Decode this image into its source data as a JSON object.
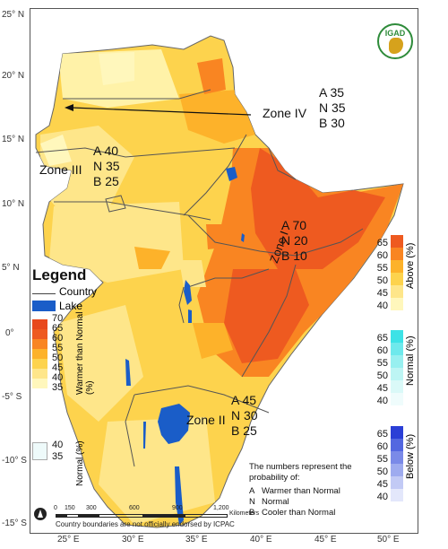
{
  "latitudes": [
    "25° N",
    "20° N",
    "15° N",
    "10° N",
    "5° N",
    "0°",
    "-5° S",
    "-10° S",
    "-15° S"
  ],
  "longitudes": [
    "25° E",
    "30° E",
    "35° E",
    "40° E",
    "45° E",
    "50° E"
  ],
  "logo": {
    "text": "IGAD"
  },
  "zones": [
    {
      "label": "Zone IV",
      "a": "A 35",
      "n": "N 35",
      "b": "B 30"
    },
    {
      "label": "Zone III",
      "a": "A 40",
      "n": "N 35",
      "b": "B 25"
    },
    {
      "label": "Zone I",
      "a": "A 70",
      "n": "N 20",
      "b": "B 10"
    },
    {
      "label": "Zone II",
      "a": "A 45",
      "n": "N 30",
      "b": "B 25"
    }
  ],
  "legend": {
    "title": "Legend",
    "country": "Country",
    "lake": "Lake",
    "warmer_label": "Warmer than Normal (%)",
    "warmer_values": [
      "70",
      "65",
      "60",
      "55",
      "50",
      "45",
      "40",
      "35"
    ],
    "normal_label": "Normal (%)",
    "normal_values": [
      "40",
      "35"
    ]
  },
  "colorbars": {
    "above": {
      "label": "Above (%)",
      "values": [
        "65",
        "60",
        "55",
        "50",
        "45",
        "40"
      ]
    },
    "normal": {
      "label": "Normal (%)",
      "values": [
        "65",
        "60",
        "55",
        "50",
        "45",
        "40"
      ]
    },
    "below": {
      "label": "Below (%)",
      "values": [
        "65",
        "60",
        "55",
        "50",
        "45",
        "40"
      ]
    }
  },
  "explanation": {
    "intro": "The numbers represent the probability of:",
    "a": "A",
    "a_text": "Warmer than Normal",
    "n": "N",
    "n_text": "Normal",
    "b": "B",
    "b_text": "Cooler than Normal"
  },
  "scale": {
    "ticks": [
      "0",
      "150",
      "300",
      "600",
      "900",
      "1,200"
    ],
    "unit": "Kilometers"
  },
  "disclaimer": "Country boundaries are not officially endorsed by ICPAC",
  "colors": {
    "above_40": "#fff7bc",
    "above_45": "#fee68a",
    "above_50": "#fdd34d",
    "above_55": "#fdb22a",
    "above_60": "#f98522",
    "above_65": "#ee5a20",
    "lake": "#1a5dc8",
    "sea": "#ffffff"
  }
}
